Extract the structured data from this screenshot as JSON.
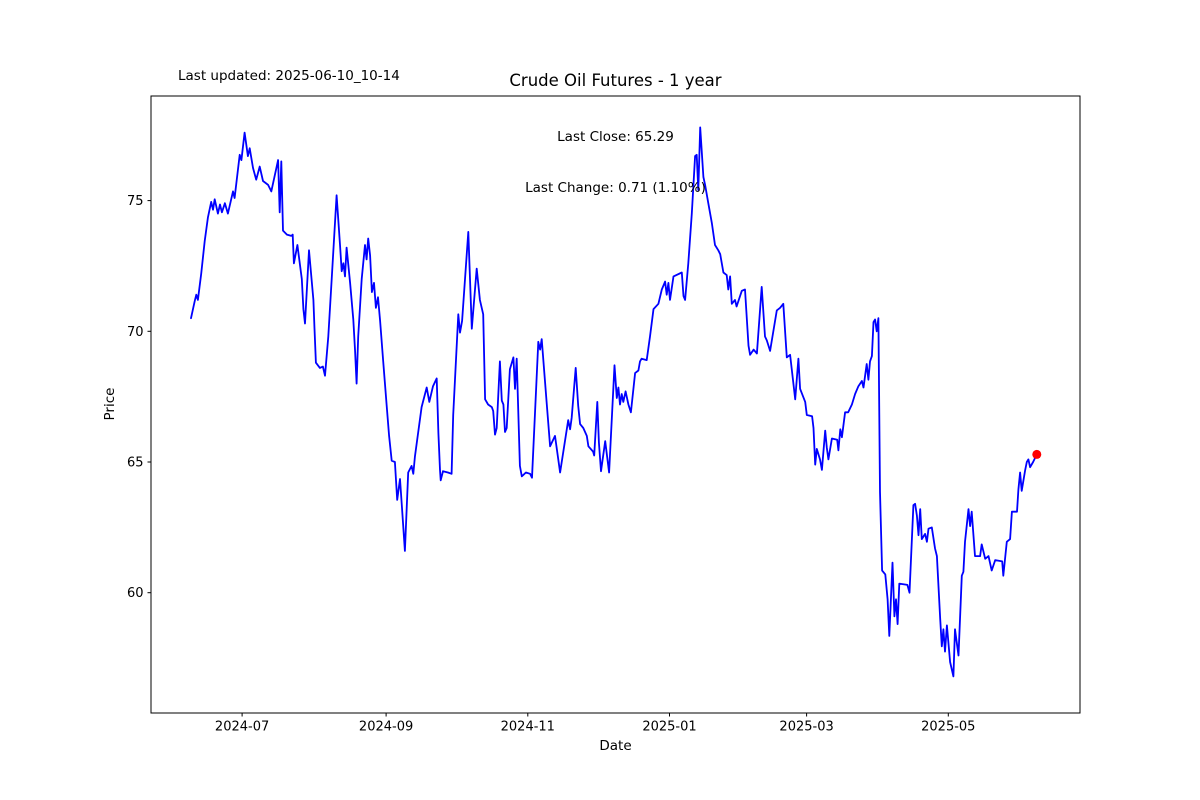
{
  "figure": {
    "last_updated": "Last updated: 2025-06-10_10-14",
    "title": "Crude Oil Futures - 1 year",
    "annotation_line1": "Last Close: 65.29",
    "annotation_line2": "Last Change: 0.71 (1.10%)",
    "xlabel": "Date",
    "ylabel": "Price"
  },
  "chart_data": {
    "type": "line",
    "title": "Crude Oil Futures - 1 year",
    "xlabel": "Date",
    "ylabel": "Price",
    "last_close": 65.29,
    "last_change_abs": 0.71,
    "last_change_pct": "1.10%",
    "line_color": "#0000ff",
    "marker_color": "#ff0000",
    "background_color": "#ffffff",
    "grid": false,
    "x_unit": "days_since_origin",
    "x_origin_date": "2024-06-09",
    "x_axis_range": [
      -17.2,
      382.7
    ],
    "y_axis_range": [
      55.4,
      79.0
    ],
    "x_ticks": [
      {
        "t": 22,
        "label": "2024-07"
      },
      {
        "t": 84,
        "label": "2024-09"
      },
      {
        "t": 145,
        "label": "2024-11"
      },
      {
        "t": 206,
        "label": "2025-01"
      },
      {
        "t": 265,
        "label": "2025-03"
      },
      {
        "t": 326,
        "label": "2025-05"
      }
    ],
    "y_ticks": [
      60,
      65,
      70,
      75
    ],
    "points": [
      [
        0,
        70.5
      ],
      [
        1.6,
        71.15
      ],
      [
        2.3,
        71.4
      ],
      [
        3,
        71.2
      ],
      [
        4.4,
        72.2
      ],
      [
        5.9,
        73.45
      ],
      [
        7.3,
        74.35
      ],
      [
        8.7,
        74.95
      ],
      [
        9.5,
        74.65
      ],
      [
        10.2,
        75.05
      ],
      [
        11.6,
        74.5
      ],
      [
        12.5,
        74.85
      ],
      [
        13.3,
        74.55
      ],
      [
        14.6,
        74.9
      ],
      [
        15.9,
        74.5
      ],
      [
        18.1,
        75.35
      ],
      [
        18.8,
        75.1
      ],
      [
        21,
        76.75
      ],
      [
        21.7,
        76.55
      ],
      [
        23.1,
        77.6
      ],
      [
        24.5,
        76.7
      ],
      [
        25.3,
        77
      ],
      [
        26.7,
        76.25
      ],
      [
        28.1,
        75.8
      ],
      [
        29.6,
        76.3
      ],
      [
        31,
        75.75
      ],
      [
        33.2,
        75.6
      ],
      [
        34.6,
        75.35
      ],
      [
        37.5,
        76.55
      ],
      [
        38.2,
        74.55
      ],
      [
        38.9,
        76.5
      ],
      [
        39.6,
        73.85
      ],
      [
        41.3,
        73.7
      ],
      [
        43.2,
        73.65
      ],
      [
        43.8,
        73.7
      ],
      [
        44.3,
        72.6
      ],
      [
        45.8,
        73.3
      ],
      [
        47.7,
        72
      ],
      [
        48.4,
        70.85
      ],
      [
        49.1,
        70.3
      ],
      [
        50.8,
        73.1
      ],
      [
        52.7,
        71.2
      ],
      [
        53.2,
        70.1
      ],
      [
        53.8,
        68.8
      ],
      [
        55.5,
        68.6
      ],
      [
        56.8,
        68.65
      ],
      [
        57.7,
        68.3
      ],
      [
        59.1,
        69.8
      ],
      [
        60.6,
        72
      ],
      [
        62.7,
        75.2
      ],
      [
        64.2,
        73.25
      ],
      [
        64.9,
        72.3
      ],
      [
        65.6,
        72.6
      ],
      [
        66.3,
        72.1
      ],
      [
        67,
        73.2
      ],
      [
        68.5,
        71.85
      ],
      [
        69.9,
        70.45
      ],
      [
        70.6,
        69.3
      ],
      [
        71.3,
        68
      ],
      [
        72,
        69.8
      ],
      [
        73.5,
        72
      ],
      [
        74.9,
        73.3
      ],
      [
        75.6,
        72.75
      ],
      [
        76.3,
        73.55
      ],
      [
        77.1,
        72.9
      ],
      [
        77.9,
        71.5
      ],
      [
        78.8,
        71.85
      ],
      [
        79.6,
        70.9
      ],
      [
        80.5,
        71.3
      ],
      [
        81.4,
        70.4
      ],
      [
        82.7,
        68.9
      ],
      [
        84.4,
        67
      ],
      [
        85.3,
        66
      ],
      [
        86.4,
        65.05
      ],
      [
        87.8,
        65
      ],
      [
        88.8,
        63.55
      ],
      [
        90,
        64.35
      ],
      [
        90.8,
        63.3
      ],
      [
        92.1,
        61.6
      ],
      [
        93.5,
        64.6
      ],
      [
        95,
        64.85
      ],
      [
        95.7,
        64.55
      ],
      [
        96.4,
        65.2
      ],
      [
        99.3,
        67.1
      ],
      [
        101.5,
        67.85
      ],
      [
        102.6,
        67.3
      ],
      [
        104.2,
        67.9
      ],
      [
        105.8,
        68.2
      ],
      [
        106.5,
        66.1
      ],
      [
        107.2,
        64.7
      ],
      [
        107.5,
        64.3
      ],
      [
        108.5,
        64.65
      ],
      [
        110.6,
        64.6
      ],
      [
        112.2,
        64.55
      ],
      [
        112.9,
        66.8
      ],
      [
        115.1,
        70.65
      ],
      [
        115.8,
        69.95
      ],
      [
        116.7,
        70.4
      ],
      [
        119.4,
        73.8
      ],
      [
        120.9,
        70.1
      ],
      [
        123,
        72.4
      ],
      [
        124.4,
        71.2
      ],
      [
        125.8,
        70.65
      ],
      [
        126.6,
        67.4
      ],
      [
        127.9,
        67.2
      ],
      [
        129.5,
        67.1
      ],
      [
        130.1,
        66.95
      ],
      [
        130.9,
        66.05
      ],
      [
        131.6,
        66.3
      ],
      [
        133,
        68.85
      ],
      [
        133.8,
        67.35
      ],
      [
        134.5,
        67.2
      ],
      [
        135.2,
        66.15
      ],
      [
        135.9,
        66.3
      ],
      [
        137.3,
        68.55
      ],
      [
        138.8,
        69
      ],
      [
        139.5,
        67.8
      ],
      [
        140.2,
        68.95
      ],
      [
        141.6,
        64.85
      ],
      [
        142.4,
        64.45
      ],
      [
        144.2,
        64.6
      ],
      [
        146,
        64.55
      ],
      [
        146.8,
        64.4
      ],
      [
        149.5,
        69.6
      ],
      [
        150.3,
        69.3
      ],
      [
        151,
        69.7
      ],
      [
        153.1,
        67.3
      ],
      [
        154.6,
        65.6
      ],
      [
        156.7,
        66
      ],
      [
        158.9,
        64.6
      ],
      [
        162.4,
        66.6
      ],
      [
        163.2,
        66.25
      ],
      [
        163.9,
        66.7
      ],
      [
        165.6,
        68.6
      ],
      [
        166.7,
        67.15
      ],
      [
        167.5,
        66.45
      ],
      [
        168.9,
        66.3
      ],
      [
        170.4,
        66
      ],
      [
        171.1,
        65.6
      ],
      [
        173.1,
        65.4
      ],
      [
        173.6,
        65.25
      ],
      [
        174.9,
        67.3
      ],
      [
        175.6,
        65.75
      ],
      [
        176.5,
        64.65
      ],
      [
        178.3,
        65.8
      ],
      [
        180,
        64.6
      ],
      [
        182.3,
        68.7
      ],
      [
        183.3,
        67.45
      ],
      [
        184,
        67.85
      ],
      [
        184.7,
        67.2
      ],
      [
        185.4,
        67.6
      ],
      [
        186.1,
        67.3
      ],
      [
        187.1,
        67.7
      ],
      [
        188.3,
        67.2
      ],
      [
        189.4,
        66.9
      ],
      [
        191.2,
        68.4
      ],
      [
        192.6,
        68.5
      ],
      [
        193.3,
        68.85
      ],
      [
        194,
        68.95
      ],
      [
        196.2,
        68.9
      ],
      [
        197.6,
        69.8
      ],
      [
        199.1,
        70.85
      ],
      [
        201.2,
        71.05
      ],
      [
        202.7,
        71.6
      ],
      [
        204.1,
        71.9
      ],
      [
        204.8,
        71.4
      ],
      [
        205.5,
        71.85
      ],
      [
        206.2,
        71.2
      ],
      [
        207.7,
        72.1
      ],
      [
        211.3,
        72.25
      ],
      [
        212,
        71.35
      ],
      [
        212.7,
        71.2
      ],
      [
        214.1,
        72.6
      ],
      [
        215.6,
        74.5
      ],
      [
        217,
        76.7
      ],
      [
        217.7,
        76.75
      ],
      [
        218.4,
        75.4
      ],
      [
        219.2,
        77.8
      ],
      [
        220.6,
        75.9
      ],
      [
        221.3,
        75.6
      ],
      [
        222.7,
        74.9
      ],
      [
        224.2,
        74.15
      ],
      [
        225.6,
        73.3
      ],
      [
        227,
        73.1
      ],
      [
        227.8,
        72.95
      ],
      [
        229.2,
        72.25
      ],
      [
        230.6,
        72.15
      ],
      [
        231.3,
        71.6
      ],
      [
        232.1,
        72.1
      ],
      [
        232.8,
        71.05
      ],
      [
        234.2,
        71.2
      ],
      [
        234.9,
        70.95
      ],
      [
        237.1,
        71.55
      ],
      [
        238.5,
        71.6
      ],
      [
        240,
        69.45
      ],
      [
        240.7,
        69.1
      ],
      [
        242.2,
        69.3
      ],
      [
        243.6,
        69.15
      ],
      [
        245.7,
        71.7
      ],
      [
        247.1,
        69.8
      ],
      [
        247.9,
        69.65
      ],
      [
        249.3,
        69.25
      ],
      [
        252.2,
        70.8
      ],
      [
        253.6,
        70.9
      ],
      [
        255,
        71.05
      ],
      [
        256.5,
        69
      ],
      [
        257.9,
        69.1
      ],
      [
        260.1,
        67.4
      ],
      [
        261.5,
        68.95
      ],
      [
        262.2,
        67.8
      ],
      [
        264.4,
        67.3
      ],
      [
        265.1,
        66.8
      ],
      [
        267.4,
        66.75
      ],
      [
        268,
        66.3
      ],
      [
        268.7,
        64.9
      ],
      [
        269.4,
        65.5
      ],
      [
        270.8,
        65.1
      ],
      [
        271.6,
        64.7
      ],
      [
        273,
        66.2
      ],
      [
        273.7,
        65.55
      ],
      [
        274.4,
        65.1
      ],
      [
        275.9,
        65.9
      ],
      [
        278.2,
        65.85
      ],
      [
        278.7,
        65.45
      ],
      [
        279.5,
        66.25
      ],
      [
        280.2,
        65.95
      ],
      [
        281.6,
        66.9
      ],
      [
        282.9,
        66.9
      ],
      [
        284.5,
        67.2
      ],
      [
        285.9,
        67.6
      ],
      [
        287.3,
        67.9
      ],
      [
        288.8,
        68.1
      ],
      [
        289.5,
        67.85
      ],
      [
        290.9,
        68.75
      ],
      [
        291.6,
        68.15
      ],
      [
        292.3,
        68.85
      ],
      [
        293.1,
        69.05
      ],
      [
        293.8,
        70.35
      ],
      [
        294.5,
        70.45
      ],
      [
        295.2,
        70
      ],
      [
        295.9,
        70.5
      ],
      [
        296.6,
        63.85
      ],
      [
        297.5,
        60.85
      ],
      [
        298.9,
        60.7
      ],
      [
        299.9,
        59.75
      ],
      [
        300.6,
        58.35
      ],
      [
        302,
        61.15
      ],
      [
        302.8,
        59.1
      ],
      [
        303.5,
        59.75
      ],
      [
        304.2,
        58.8
      ],
      [
        304.9,
        60.35
      ],
      [
        308.4,
        60.3
      ],
      [
        309.3,
        60
      ],
      [
        311,
        63.35
      ],
      [
        311.7,
        63.4
      ],
      [
        312.5,
        62.95
      ],
      [
        313.2,
        62.2
      ],
      [
        313.9,
        63.2
      ],
      [
        314.6,
        62.05
      ],
      [
        316,
        62.25
      ],
      [
        316.8,
        61.95
      ],
      [
        317.5,
        62.45
      ],
      [
        318.9,
        62.5
      ],
      [
        320.3,
        61.7
      ],
      [
        321.1,
        61.4
      ],
      [
        322.5,
        59
      ],
      [
        323.2,
        57.95
      ],
      [
        323.9,
        58.6
      ],
      [
        324.6,
        57.75
      ],
      [
        325.4,
        58.75
      ],
      [
        326.8,
        57.35
      ],
      [
        328.2,
        56.8
      ],
      [
        328.9,
        58.6
      ],
      [
        330.4,
        57.6
      ],
      [
        331.8,
        60.65
      ],
      [
        332.5,
        60.8
      ],
      [
        333.2,
        61.95
      ],
      [
        334.7,
        63.2
      ],
      [
        335.4,
        62.55
      ],
      [
        336.1,
        63.1
      ],
      [
        337.5,
        61.4
      ],
      [
        339.7,
        61.4
      ],
      [
        340.4,
        61.85
      ],
      [
        341.9,
        61.3
      ],
      [
        343.3,
        61.4
      ],
      [
        344.7,
        60.85
      ],
      [
        346.2,
        61.25
      ],
      [
        349.2,
        61.2
      ],
      [
        349.7,
        60.65
      ],
      [
        351.2,
        61.95
      ],
      [
        352.6,
        62.05
      ],
      [
        353.4,
        63.1
      ],
      [
        355.6,
        63.1
      ],
      [
        356.2,
        63.95
      ],
      [
        356.9,
        64.6
      ],
      [
        357.6,
        63.9
      ],
      [
        359.1,
        64.7
      ],
      [
        359.8,
        65
      ],
      [
        360.5,
        65.1
      ],
      [
        361.2,
        64.8
      ],
      [
        362.5,
        65
      ],
      [
        364.1,
        65.29
      ]
    ]
  }
}
